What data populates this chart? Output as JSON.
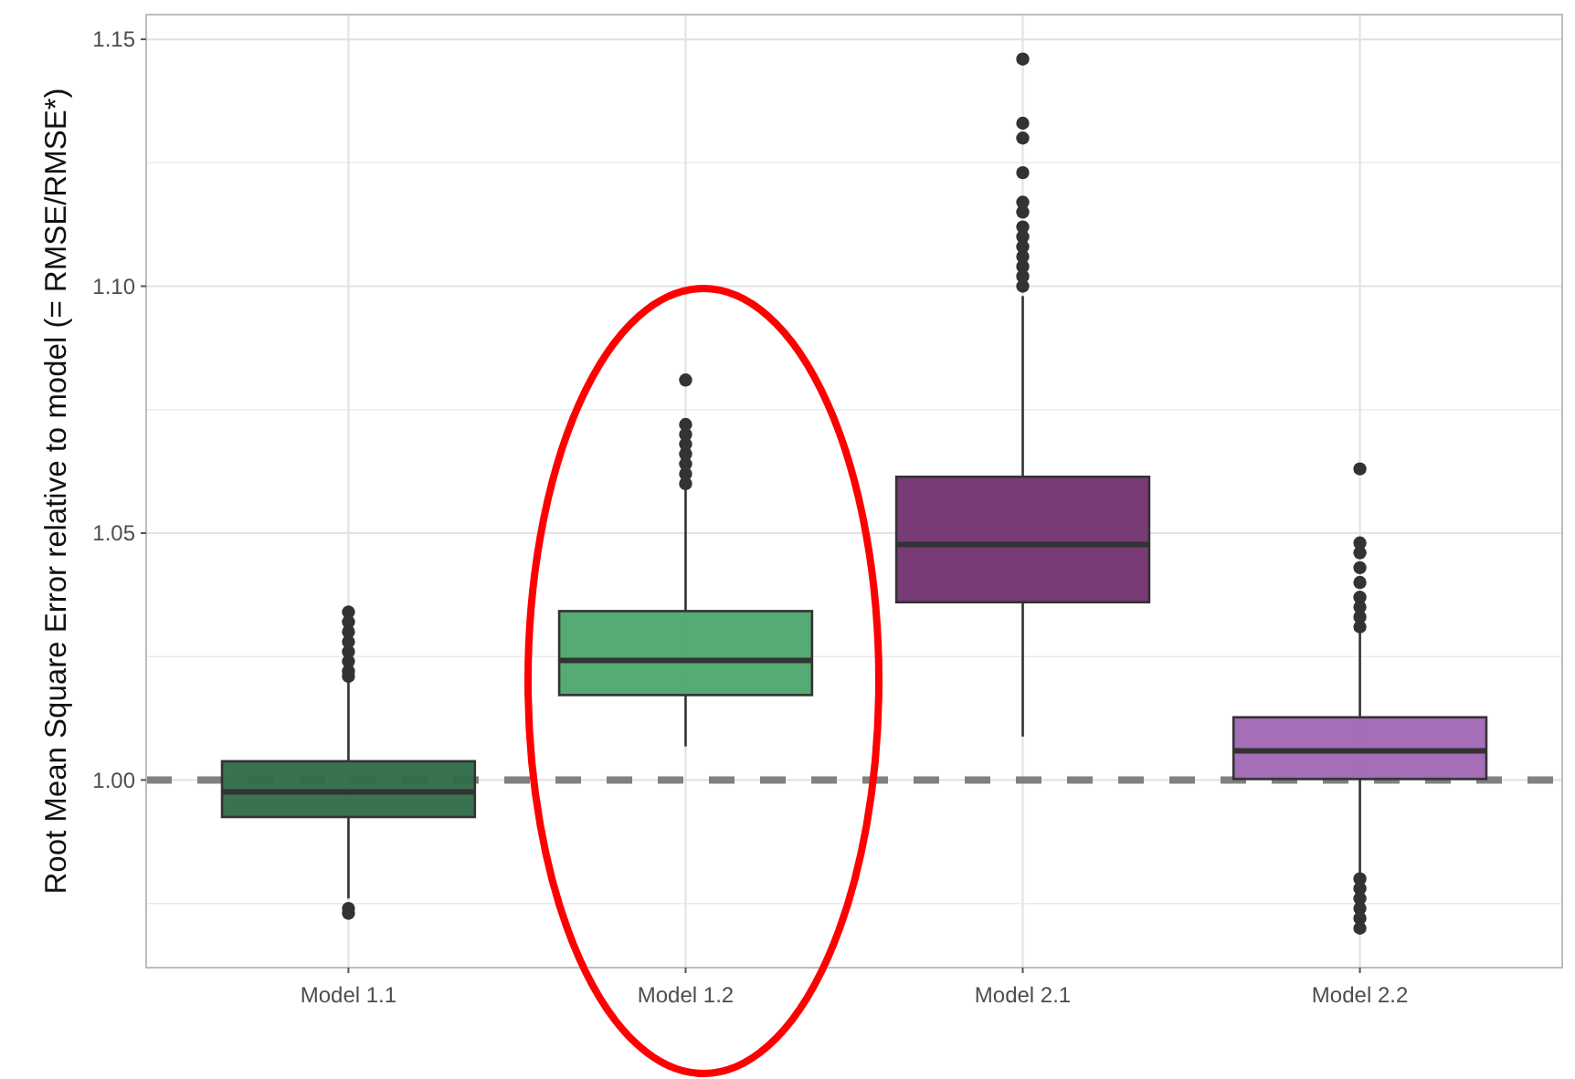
{
  "chart_data": {
    "type": "box",
    "ylabel": "Root Mean Square Error relative to model (= RMSE/RMSE*)",
    "categories": [
      "Model 1.1",
      "Model 1.2",
      "Model 2.1",
      "Model 2.2"
    ],
    "colors": [
      "#2e6a46",
      "#4da56b",
      "#71306f",
      "#a066b3"
    ],
    "boxes": [
      {
        "low": 0.976,
        "q1": 0.9925,
        "median": 0.9976,
        "q3": 1.0038,
        "high": 1.02,
        "outliers": [
          1.021,
          1.022,
          1.024,
          1.026,
          1.028,
          1.03,
          1.032,
          1.034,
          0.974,
          0.973
        ]
      },
      {
        "low": 1.0068,
        "q1": 1.0172,
        "median": 1.0242,
        "q3": 1.0342,
        "high": 1.059,
        "outliers": [
          1.06,
          1.062,
          1.064,
          1.066,
          1.068,
          1.07,
          1.072,
          1.081
        ]
      },
      {
        "low": 1.0088,
        "q1": 1.036,
        "median": 1.0477,
        "q3": 1.0614,
        "high": 1.098,
        "outliers": [
          1.1,
          1.102,
          1.104,
          1.106,
          1.108,
          1.11,
          1.112,
          1.115,
          1.117,
          1.123,
          1.13,
          1.133,
          1.146
        ]
      },
      {
        "low": 0.9812,
        "q1": 1.0002,
        "median": 1.0059,
        "q3": 1.0127,
        "high": 1.0308,
        "outliers": [
          1.031,
          1.033,
          1.035,
          1.037,
          1.04,
          1.043,
          1.046,
          1.048,
          1.063,
          0.98,
          0.978,
          0.976,
          0.974,
          0.972,
          0.97
        ]
      }
    ],
    "ylim": [
      0.962,
      1.155
    ],
    "yticks": [
      {
        "value": 1,
        "label": "1.00"
      },
      1.05,
      {
        "value": 1.1,
        "label": "1.10"
      },
      1.15
    ],
    "grid": true,
    "ref_lines": [
      {
        "axis": "y",
        "value": 1,
        "color": "#808080",
        "line_style": "dashed"
      }
    ]
  }
}
